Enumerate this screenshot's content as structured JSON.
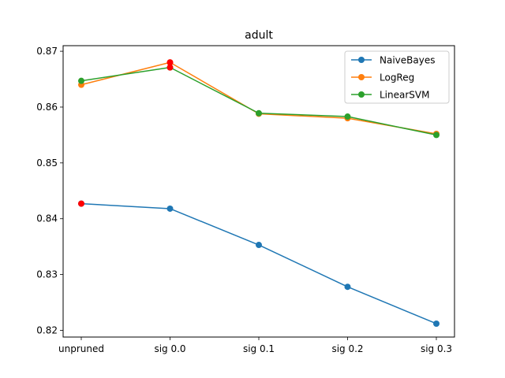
{
  "chart_data": {
    "type": "line",
    "title": "adult",
    "xlabel": "",
    "ylabel": "",
    "categories": [
      "unpruned",
      "sig 0.0",
      "sig 0.1",
      "sig 0.2",
      "sig 0.3"
    ],
    "ylim": [
      0.8188,
      0.871
    ],
    "yticks": [
      0.82,
      0.83,
      0.84,
      0.85,
      0.86,
      0.87
    ],
    "ytick_labels": [
      "0.82",
      "0.83",
      "0.84",
      "0.85",
      "0.86",
      "0.87"
    ],
    "grid": false,
    "legend_position": "top-right",
    "highlight_color": "#ff0000",
    "series": [
      {
        "name": "NaiveBayes",
        "color": "#1f77b4",
        "values": [
          0.8427,
          0.8418,
          0.8353,
          0.8278,
          0.8212
        ],
        "highlight_index": 0
      },
      {
        "name": "LogReg",
        "color": "#ff7f0e",
        "values": [
          0.864,
          0.868,
          0.8588,
          0.858,
          0.8552
        ],
        "highlight_index": 1
      },
      {
        "name": "LinearSVM",
        "color": "#2ca02c",
        "values": [
          0.8647,
          0.8671,
          0.8589,
          0.8583,
          0.855
        ],
        "highlight_index": 1
      }
    ]
  }
}
